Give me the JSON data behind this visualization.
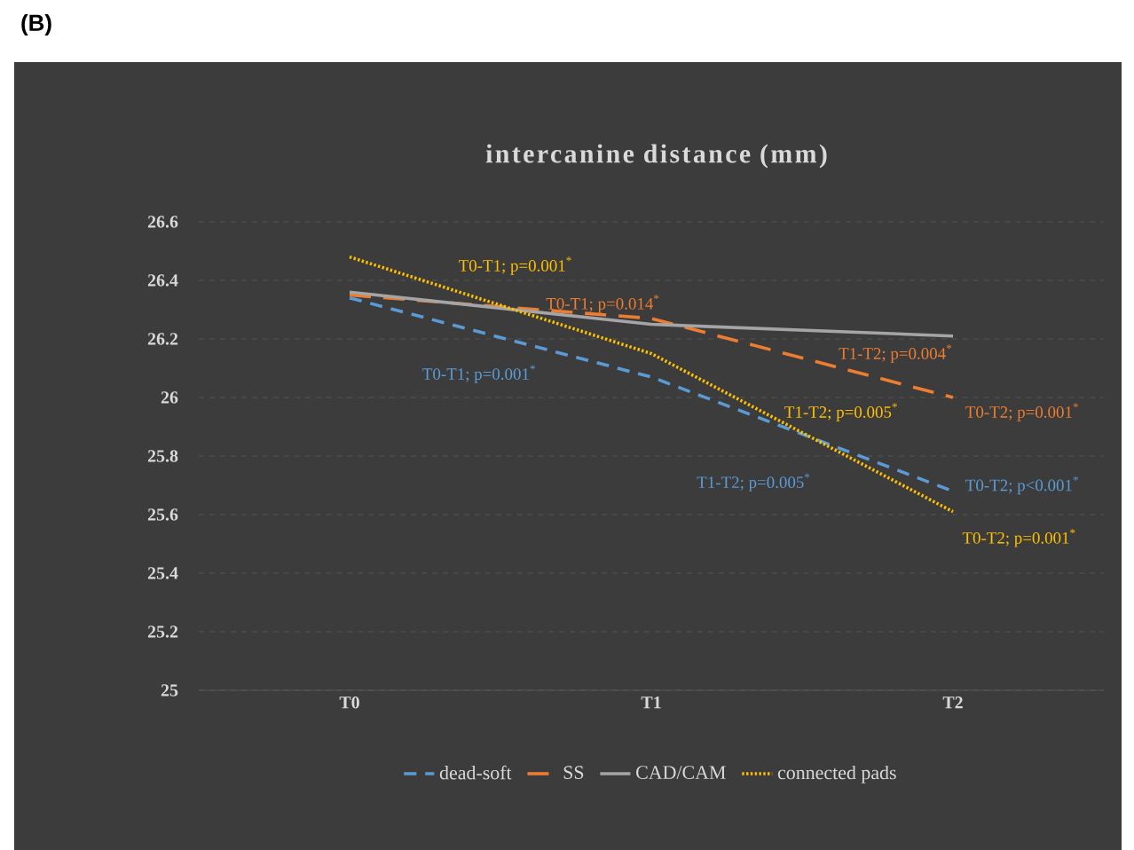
{
  "chart_data": {
    "type": "line",
    "title": "intercanine distance (mm)",
    "categories": [
      "T0",
      "T1",
      "T2"
    ],
    "series": [
      {
        "name": "dead-soft",
        "color": "#5b9bd5",
        "line_style": "dashed",
        "values": [
          26.34,
          26.07,
          25.68
        ]
      },
      {
        "name": "SS",
        "color": "#ed7d31",
        "line_style": "dashed",
        "values": [
          26.35,
          26.27,
          26.0
        ]
      },
      {
        "name": "CAD/CAM",
        "color": "#a5a5a5",
        "line_style": "solid",
        "values": [
          26.36,
          26.25,
          26.21
        ]
      },
      {
        "name": "connected pads",
        "color": "#ffc000",
        "line_style": "dotted",
        "values": [
          26.48,
          26.15,
          25.61
        ]
      }
    ],
    "ylim": [
      25,
      26.6
    ],
    "yticks": [
      25,
      25.2,
      25.4,
      25.6,
      25.8,
      26,
      26.2,
      26.4,
      26.6
    ],
    "grid": "y",
    "legend": "bottom",
    "marker": "none",
    "annotations": [
      "(B)",
      "T0-T1; p=0.001$^{*}$",
      "T0-T1; p=0.014$^{*}$",
      "T0-T1; p=0.001$^{*}$",
      "T1-T2; p=0.004$^{*}$",
      "T0-T2; p=0.001$^{*}$",
      "T1-T2; p=0.005$^{*}$",
      "T1-T2; p=0.005$^{*}$",
      "T0-T2; p<0.001$^{*}$",
      "T0-T2; p=0.001$^{*}$"
    ]
  }
}
